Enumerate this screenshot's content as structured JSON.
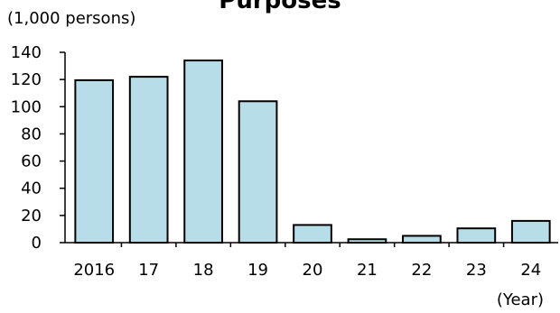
{
  "chart_data": {
    "type": "bar",
    "title": "Purposes",
    "ylabel": "(1,000 persons)",
    "xlabel": "(Year)",
    "categories": [
      "2016",
      "17",
      "18",
      "19",
      "20",
      "21",
      "22",
      "23",
      "24"
    ],
    "values": [
      119.5,
      122,
      134,
      104,
      13,
      2.5,
      5,
      10.5,
      16
    ],
    "ylim": [
      0,
      140
    ],
    "yticks": [
      "0",
      "20",
      "40",
      "60",
      "80",
      "100",
      "120",
      "140"
    ],
    "grid": false,
    "legend": "none",
    "bar_color": "#b7dde8",
    "bar_edge_color": "#000000"
  }
}
